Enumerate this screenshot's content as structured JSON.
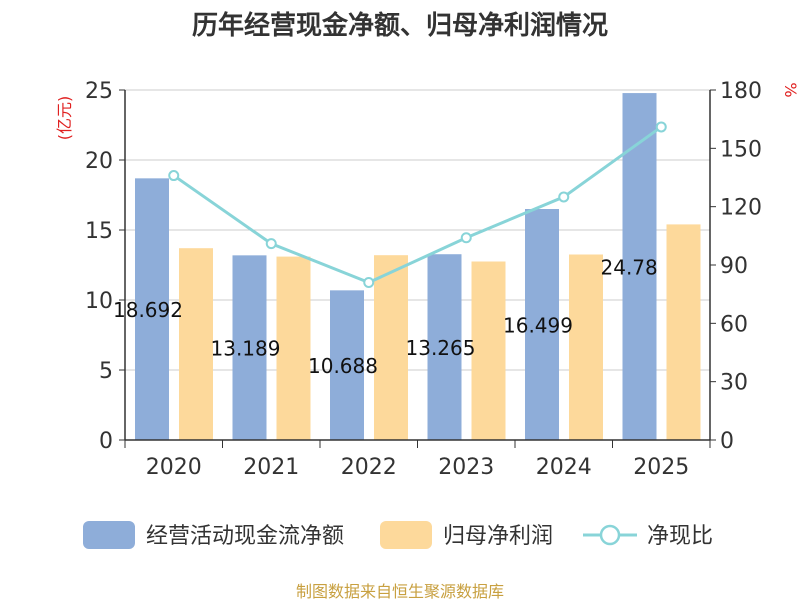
{
  "chart_data": {
    "type": "bar",
    "title": "历年经营现金净额、归母净利润情况",
    "categories": [
      "2020",
      "2021",
      "2022",
      "2023",
      "2024",
      "2025"
    ],
    "left_axis": {
      "unit": "(亿元)",
      "range": [
        0,
        25
      ],
      "ticks": [
        "0",
        "5",
        "10",
        "15",
        "20",
        "25"
      ]
    },
    "right_axis": {
      "unit": "%",
      "range": [
        0,
        180
      ],
      "ticks": [
        "0",
        "30",
        "60",
        "90",
        "120",
        "150",
        "180"
      ]
    },
    "series": [
      {
        "name": "经营活动现金流净额",
        "type": "bar",
        "axis": "left",
        "color": "#8eadd9",
        "values": [
          18.69,
          13.19,
          10.69,
          13.27,
          16.5,
          24.78
        ],
        "labels": [
          "18.692",
          "13.189",
          "10.688",
          "13.265",
          "16.499",
          "24.78"
        ]
      },
      {
        "name": "归母净利润",
        "type": "bar",
        "axis": "left",
        "color": "#fdd99b",
        "values": [
          13.7,
          13.1,
          13.2,
          12.75,
          13.25,
          15.4
        ]
      },
      {
        "name": "净现比",
        "type": "line",
        "axis": "right",
        "color": "#88d4d8",
        "values": [
          136,
          101,
          81,
          104,
          125,
          161
        ]
      }
    ],
    "grid": true,
    "legend_position": "bottom"
  },
  "footer": "制图数据来自恒生聚源数据库"
}
